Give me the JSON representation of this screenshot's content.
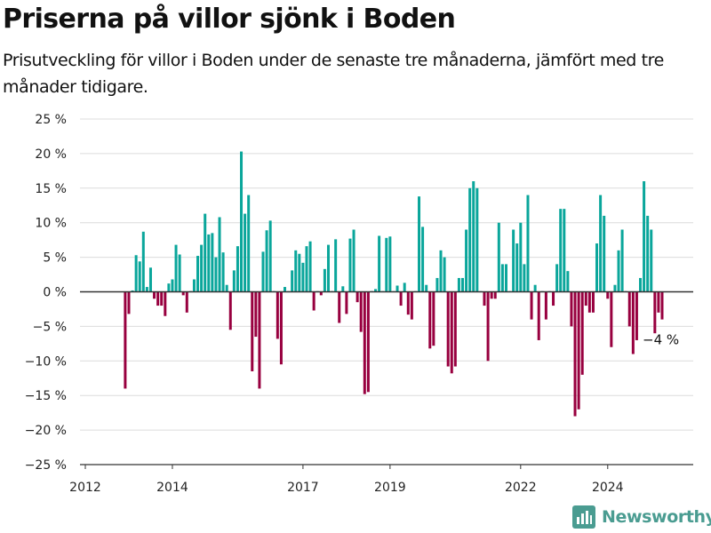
{
  "title": "Priserna på villor sjönk i Boden",
  "subtitle": "Prisutveckling för villor i Boden under de senaste tre månaderna, jämfört med tre månader tidigare.",
  "brand": {
    "name": "Newsworthy",
    "icon": "newsworthy-logo-icon"
  },
  "colors": {
    "positive": "#0aa69b",
    "negative": "#98003f",
    "grid": "#dcdcdc",
    "zero_line": "#333333",
    "brand": "#4a9c91"
  },
  "chart_data": {
    "type": "bar",
    "title": "Priserna på villor sjönk i Boden",
    "subtitle": "Prisutveckling för villor i Boden under de senaste tre månaderna, jämfört med tre månader tidigare.",
    "xlabel": "",
    "ylabel": "",
    "ylim": [
      -25,
      25
    ],
    "y_ticks": [
      25,
      20,
      15,
      10,
      5,
      0,
      -5,
      -10,
      -15,
      -20,
      -25
    ],
    "y_tick_labels": [
      "25 %",
      "20 %",
      "15 %",
      "10 %",
      "5 %",
      "0 %",
      "−5 %",
      "−10 %",
      "−15 %",
      "−20 %",
      "−25 %"
    ],
    "x_ticks": [
      "2012",
      "2014",
      "2017",
      "2019",
      "2022",
      "2024"
    ],
    "grid": true,
    "series": [
      {
        "values": [
          {
            "x": "2012-12",
            "y": -14.0
          },
          {
            "x": "2013-01",
            "y": -3.2
          },
          {
            "x": "2013-02",
            "y": 0.2
          },
          {
            "x": "2013-03",
            "y": 5.3
          },
          {
            "x": "2013-04",
            "y": 4.4
          },
          {
            "x": "2013-05",
            "y": 8.7
          },
          {
            "x": "2013-06",
            "y": 0.7
          },
          {
            "x": "2013-07",
            "y": 3.5
          },
          {
            "x": "2013-08",
            "y": -1.0
          },
          {
            "x": "2013-09",
            "y": -2.0
          },
          {
            "x": "2013-10",
            "y": -2.0
          },
          {
            "x": "2013-11",
            "y": -3.5
          },
          {
            "x": "2013-12",
            "y": 1.2
          },
          {
            "x": "2014-01",
            "y": 1.8
          },
          {
            "x": "2014-02",
            "y": 6.8
          },
          {
            "x": "2014-03",
            "y": 5.4
          },
          {
            "x": "2014-04",
            "y": -0.5
          },
          {
            "x": "2014-05",
            "y": -3.0
          },
          {
            "x": "2014-06",
            "y": 0.1
          },
          {
            "x": "2014-07",
            "y": 1.8
          },
          {
            "x": "2014-08",
            "y": 5.2
          },
          {
            "x": "2014-09",
            "y": 6.8
          },
          {
            "x": "2014-10",
            "y": 11.3
          },
          {
            "x": "2014-11",
            "y": 8.3
          },
          {
            "x": "2014-12",
            "y": 8.5
          },
          {
            "x": "2015-01",
            "y": 5.0
          },
          {
            "x": "2015-02",
            "y": 10.8
          },
          {
            "x": "2015-03",
            "y": 5.7
          },
          {
            "x": "2015-04",
            "y": 1.0
          },
          {
            "x": "2015-05",
            "y": -5.5
          },
          {
            "x": "2015-06",
            "y": 3.1
          },
          {
            "x": "2015-07",
            "y": 6.6
          },
          {
            "x": "2015-08",
            "y": 20.3
          },
          {
            "x": "2015-09",
            "y": 11.3
          },
          {
            "x": "2015-10",
            "y": 14.0
          },
          {
            "x": "2015-11",
            "y": -11.5
          },
          {
            "x": "2015-12",
            "y": -6.5
          },
          {
            "x": "2016-01",
            "y": -14.0
          },
          {
            "x": "2016-02",
            "y": 5.8
          },
          {
            "x": "2016-03",
            "y": 8.9
          },
          {
            "x": "2016-04",
            "y": 10.3
          },
          {
            "x": "2016-05",
            "y": 0.1
          },
          {
            "x": "2016-06",
            "y": -6.8
          },
          {
            "x": "2016-07",
            "y": -10.5
          },
          {
            "x": "2016-08",
            "y": 0.7
          },
          {
            "x": "2016-09",
            "y": 0.1
          },
          {
            "x": "2016-10",
            "y": 3.1
          },
          {
            "x": "2016-11",
            "y": 6.0
          },
          {
            "x": "2016-12",
            "y": 5.5
          },
          {
            "x": "2017-01",
            "y": 4.2
          },
          {
            "x": "2017-02",
            "y": 6.6
          },
          {
            "x": "2017-03",
            "y": 7.3
          },
          {
            "x": "2017-04",
            "y": -2.7
          },
          {
            "x": "2017-05",
            "y": 0.1
          },
          {
            "x": "2017-06",
            "y": -0.5
          },
          {
            "x": "2017-07",
            "y": 3.3
          },
          {
            "x": "2017-08",
            "y": 6.8
          },
          {
            "x": "2017-09",
            "y": 0.1
          },
          {
            "x": "2017-10",
            "y": 7.6
          },
          {
            "x": "2017-11",
            "y": -4.5
          },
          {
            "x": "2017-12",
            "y": 0.8
          },
          {
            "x": "2018-01",
            "y": -3.2
          },
          {
            "x": "2018-02",
            "y": 7.7
          },
          {
            "x": "2018-03",
            "y": 9.0
          },
          {
            "x": "2018-04",
            "y": -1.5
          },
          {
            "x": "2018-05",
            "y": -5.8
          },
          {
            "x": "2018-06",
            "y": -14.8
          },
          {
            "x": "2018-07",
            "y": -14.5
          },
          {
            "x": "2018-08",
            "y": 0.1
          },
          {
            "x": "2018-09",
            "y": 0.4
          },
          {
            "x": "2018-10",
            "y": 8.1
          },
          {
            "x": "2018-11",
            "y": 0.1
          },
          {
            "x": "2018-12",
            "y": 7.8
          },
          {
            "x": "2019-01",
            "y": 8.0
          },
          {
            "x": "2019-02",
            "y": 0.1
          },
          {
            "x": "2019-03",
            "y": 0.9
          },
          {
            "x": "2019-04",
            "y": -2.0
          },
          {
            "x": "2019-05",
            "y": 1.3
          },
          {
            "x": "2019-06",
            "y": -3.3
          },
          {
            "x": "2019-07",
            "y": -4.0
          },
          {
            "x": "2019-08",
            "y": 0.1
          },
          {
            "x": "2019-09",
            "y": 13.8
          },
          {
            "x": "2019-10",
            "y": 9.4
          },
          {
            "x": "2019-11",
            "y": 1.0
          },
          {
            "x": "2019-12",
            "y": -8.2
          },
          {
            "x": "2020-01",
            "y": -7.8
          },
          {
            "x": "2020-02",
            "y": 2.0
          },
          {
            "x": "2020-03",
            "y": 6.0
          },
          {
            "x": "2020-04",
            "y": 5.0
          },
          {
            "x": "2020-05",
            "y": -10.8
          },
          {
            "x": "2020-06",
            "y": -11.8
          },
          {
            "x": "2020-07",
            "y": -10.8
          },
          {
            "x": "2020-08",
            "y": 2.0
          },
          {
            "x": "2020-09",
            "y": 2.0
          },
          {
            "x": "2020-10",
            "y": 9.0
          },
          {
            "x": "2020-11",
            "y": 15.0
          },
          {
            "x": "2020-12",
            "y": 16.0
          },
          {
            "x": "2021-01",
            "y": 15.0
          },
          {
            "x": "2021-02",
            "y": 0.1
          },
          {
            "x": "2021-03",
            "y": -2.0
          },
          {
            "x": "2021-04",
            "y": -10.0
          },
          {
            "x": "2021-05",
            "y": -1.0
          },
          {
            "x": "2021-06",
            "y": -1.0
          },
          {
            "x": "2021-07",
            "y": 10.0
          },
          {
            "x": "2021-08",
            "y": 4.0
          },
          {
            "x": "2021-09",
            "y": 4.0
          },
          {
            "x": "2021-10",
            "y": 0.1
          },
          {
            "x": "2021-11",
            "y": 9.0
          },
          {
            "x": "2021-12",
            "y": 7.0
          },
          {
            "x": "2022-01",
            "y": 10.0
          },
          {
            "x": "2022-02",
            "y": 4.0
          },
          {
            "x": "2022-03",
            "y": 14.0
          },
          {
            "x": "2022-04",
            "y": -4.0
          },
          {
            "x": "2022-05",
            "y": 1.0
          },
          {
            "x": "2022-06",
            "y": -7.0
          },
          {
            "x": "2022-07",
            "y": 0.1
          },
          {
            "x": "2022-08",
            "y": -4.0
          },
          {
            "x": "2022-09",
            "y": 0.1
          },
          {
            "x": "2022-10",
            "y": -2.0
          },
          {
            "x": "2022-11",
            "y": 4.0
          },
          {
            "x": "2022-12",
            "y": 12.0
          },
          {
            "x": "2023-01",
            "y": 12.0
          },
          {
            "x": "2023-02",
            "y": 3.0
          },
          {
            "x": "2023-03",
            "y": -5.0
          },
          {
            "x": "2023-04",
            "y": -18.0
          },
          {
            "x": "2023-05",
            "y": -17.0
          },
          {
            "x": "2023-06",
            "y": -12.0
          },
          {
            "x": "2023-07",
            "y": -2.0
          },
          {
            "x": "2023-08",
            "y": -3.0
          },
          {
            "x": "2023-09",
            "y": -3.0
          },
          {
            "x": "2023-10",
            "y": 7.0
          },
          {
            "x": "2023-11",
            "y": 14.0
          },
          {
            "x": "2023-12",
            "y": 11.0
          },
          {
            "x": "2024-01",
            "y": -1.0
          },
          {
            "x": "2024-02",
            "y": -8.0
          },
          {
            "x": "2024-03",
            "y": 1.0
          },
          {
            "x": "2024-04",
            "y": 6.0
          },
          {
            "x": "2024-05",
            "y": 9.0
          },
          {
            "x": "2024-06",
            "y": 0.1
          },
          {
            "x": "2024-07",
            "y": -5.0
          },
          {
            "x": "2024-08",
            "y": -9.0
          },
          {
            "x": "2024-09",
            "y": -7.0
          },
          {
            "x": "2024-10",
            "y": 2.0
          },
          {
            "x": "2024-11",
            "y": 16.0
          },
          {
            "x": "2024-12",
            "y": 11.0
          },
          {
            "x": "2025-01",
            "y": 9.0
          },
          {
            "x": "2025-02",
            "y": -6.0
          },
          {
            "x": "2025-03",
            "y": -3.0
          },
          {
            "x": "2025-04",
            "y": -4.0
          }
        ]
      }
    ],
    "annotations": [
      {
        "x": "2025-04",
        "y": -4.0,
        "text": "−4 %"
      }
    ]
  }
}
